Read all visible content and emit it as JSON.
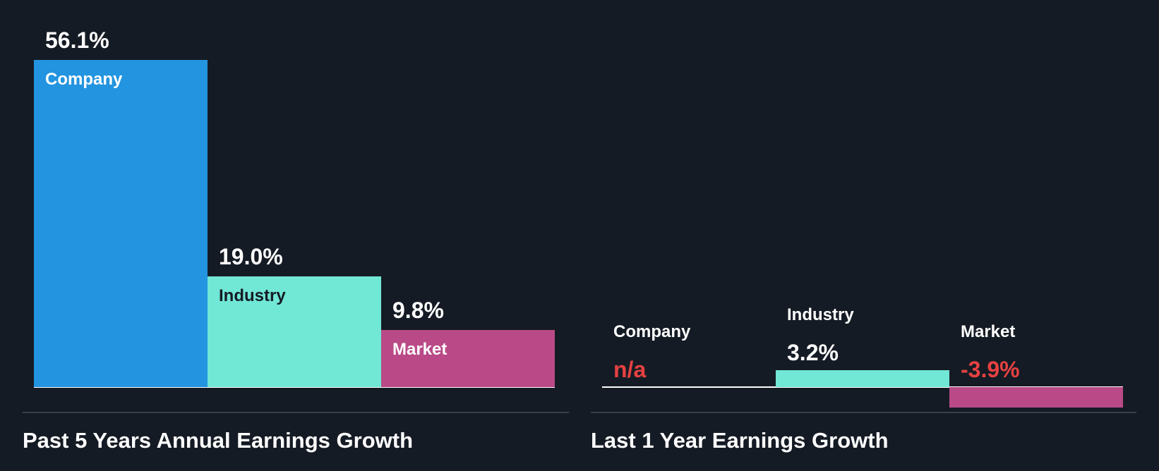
{
  "colors": {
    "background": "#151b24",
    "company": "#2394df",
    "industry": "#71e7d6",
    "market": "#b94a87",
    "negative_text": "#e64141",
    "text": "#ffffff",
    "dark_text": "#151b24"
  },
  "chart_data": [
    {
      "type": "bar",
      "title": "Past 5 Years Annual Earnings Growth",
      "categories": [
        "Company",
        "Industry",
        "Market"
      ],
      "values": [
        56.1,
        19.0,
        9.8
      ],
      "value_labels": [
        "56.1%",
        "19.0%",
        "9.8%"
      ],
      "unit": "%",
      "grid": false,
      "legend": "none"
    },
    {
      "type": "bar",
      "title": "Last 1 Year Earnings Growth",
      "categories": [
        "Company",
        "Industry",
        "Market"
      ],
      "values": [
        null,
        3.2,
        -3.9
      ],
      "value_labels": [
        "n/a",
        "3.2%",
        "-3.9%"
      ],
      "unit": "%",
      "grid": false,
      "legend": "none"
    }
  ]
}
